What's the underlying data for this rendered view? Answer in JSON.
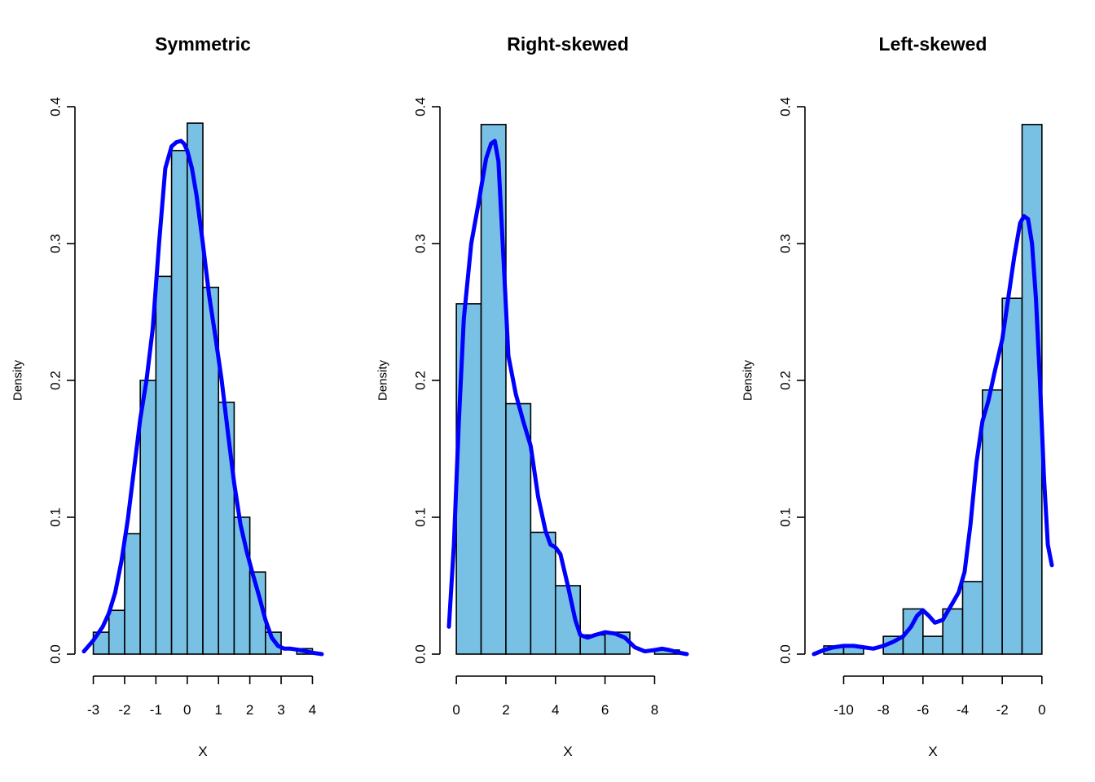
{
  "colors": {
    "bar_fill": "#78C1E5",
    "bar_border": "#000000",
    "density_line": "#0000FF",
    "background": "#FFFFFF"
  },
  "chart_data": [
    {
      "type": "bar",
      "subtype": "histogram-with-density",
      "title": "Symmetric",
      "xlabel": "X",
      "ylabel": "Density",
      "xlim": [
        -3.3,
        4.3
      ],
      "ylim": [
        0,
        0.4
      ],
      "xticks": [
        -3,
        -2,
        -1,
        0,
        1,
        2,
        3,
        4
      ],
      "xtick_labels": [
        "-3",
        "-2",
        "-1",
        "0",
        "1",
        "2",
        "3",
        "4"
      ],
      "yticks": [
        0,
        0.1,
        0.2,
        0.3,
        0.4
      ],
      "ytick_labels": [
        "0.0",
        "0.1",
        "0.2",
        "0.3",
        "0.4"
      ],
      "bin_edges": [
        -3,
        -2.5,
        -2,
        -1.5,
        -1,
        -0.5,
        0,
        0.5,
        1,
        1.5,
        2,
        2.5,
        3,
        3.5,
        4
      ],
      "values": [
        0.016,
        0.032,
        0.088,
        0.2,
        0.276,
        0.368,
        0.388,
        0.268,
        0.184,
        0.1,
        0.06,
        0.016,
        0.0,
        0.004
      ],
      "density": {
        "x": [
          -3.3,
          -3.0,
          -2.7,
          -2.5,
          -2.3,
          -2.1,
          -1.9,
          -1.7,
          -1.5,
          -1.3,
          -1.1,
          -0.9,
          -0.7,
          -0.5,
          -0.35,
          -0.2,
          -0.1,
          0.0,
          0.15,
          0.3,
          0.5,
          0.7,
          0.9,
          1.1,
          1.3,
          1.5,
          1.7,
          1.9,
          2.1,
          2.3,
          2.5,
          2.7,
          2.9,
          3.1,
          3.3,
          3.6,
          4.0,
          4.3
        ],
        "y": [
          0.002,
          0.01,
          0.02,
          0.03,
          0.045,
          0.068,
          0.098,
          0.135,
          0.172,
          0.2,
          0.238,
          0.3,
          0.355,
          0.371,
          0.374,
          0.375,
          0.373,
          0.368,
          0.355,
          0.335,
          0.3,
          0.262,
          0.232,
          0.2,
          0.162,
          0.125,
          0.095,
          0.075,
          0.058,
          0.042,
          0.025,
          0.012,
          0.006,
          0.004,
          0.004,
          0.003,
          0.001,
          0.0
        ]
      }
    },
    {
      "type": "bar",
      "subtype": "histogram-with-density",
      "title": "Right-skewed",
      "xlabel": "X",
      "ylabel": "Density",
      "xlim": [
        -0.3,
        9.3
      ],
      "ylim": [
        0,
        0.4
      ],
      "xticks": [
        0,
        2,
        4,
        6,
        8
      ],
      "xtick_labels": [
        "0",
        "2",
        "4",
        "6",
        "8"
      ],
      "yticks": [
        0,
        0.1,
        0.2,
        0.3,
        0.4
      ],
      "ytick_labels": [
        "0.0",
        "0.1",
        "0.2",
        "0.3",
        "0.4"
      ],
      "bin_edges": [
        0,
        1,
        2,
        3,
        4,
        5,
        6,
        7,
        8,
        9
      ],
      "values": [
        0.256,
        0.387,
        0.183,
        0.089,
        0.05,
        0.014,
        0.016,
        0.0,
        0.003
      ],
      "density": {
        "x": [
          -0.3,
          -0.1,
          0.1,
          0.3,
          0.6,
          0.9,
          1.2,
          1.4,
          1.55,
          1.7,
          1.9,
          2.1,
          2.4,
          2.7,
          3.0,
          3.3,
          3.6,
          3.8,
          4.0,
          4.2,
          4.5,
          4.8,
          5.0,
          5.3,
          5.6,
          6.0,
          6.4,
          6.8,
          7.2,
          7.6,
          8.0,
          8.3,
          8.6,
          9.0,
          9.3
        ],
        "y": [
          0.02,
          0.08,
          0.17,
          0.245,
          0.3,
          0.33,
          0.362,
          0.373,
          0.375,
          0.36,
          0.29,
          0.218,
          0.19,
          0.17,
          0.152,
          0.115,
          0.09,
          0.08,
          0.078,
          0.073,
          0.05,
          0.025,
          0.014,
          0.012,
          0.014,
          0.016,
          0.015,
          0.012,
          0.005,
          0.002,
          0.003,
          0.004,
          0.003,
          0.001,
          0.0
        ]
      }
    },
    {
      "type": "bar",
      "subtype": "histogram-with-density",
      "title": "Left-skewed",
      "xlabel": "X",
      "ylabel": "Density",
      "xlim": [
        -11.5,
        0.5
      ],
      "ylim": [
        0,
        0.4
      ],
      "xticks": [
        -10,
        -8,
        -6,
        -4,
        -2,
        0
      ],
      "xtick_labels": [
        "-10",
        "-8",
        "-6",
        "-4",
        "-2",
        "0"
      ],
      "yticks": [
        0,
        0.1,
        0.2,
        0.3,
        0.4
      ],
      "ytick_labels": [
        "0.0",
        "0.1",
        "0.2",
        "0.3",
        "0.4"
      ],
      "bin_edges": [
        -11,
        -10,
        -9,
        -8,
        -7,
        -6,
        -5,
        -4,
        -3,
        -2,
        -1,
        0
      ],
      "values": [
        0.006,
        0.006,
        0.0,
        0.013,
        0.033,
        0.013,
        0.033,
        0.053,
        0.193,
        0.26,
        0.387
      ],
      "density": {
        "x": [
          -11.5,
          -11.0,
          -10.5,
          -10.0,
          -9.5,
          -9.0,
          -8.5,
          -8.0,
          -7.5,
          -7.0,
          -6.6,
          -6.3,
          -6.0,
          -5.7,
          -5.4,
          -5.0,
          -4.6,
          -4.2,
          -3.9,
          -3.6,
          -3.3,
          -3.0,
          -2.7,
          -2.4,
          -2.0,
          -1.7,
          -1.4,
          -1.1,
          -0.9,
          -0.7,
          -0.5,
          -0.3,
          -0.1,
          0.1,
          0.3,
          0.5
        ],
        "y": [
          0.0,
          0.003,
          0.005,
          0.006,
          0.006,
          0.005,
          0.004,
          0.006,
          0.009,
          0.013,
          0.02,
          0.028,
          0.032,
          0.028,
          0.023,
          0.025,
          0.035,
          0.045,
          0.06,
          0.095,
          0.14,
          0.17,
          0.185,
          0.205,
          0.23,
          0.26,
          0.29,
          0.315,
          0.32,
          0.318,
          0.3,
          0.26,
          0.2,
          0.13,
          0.08,
          0.065
        ]
      }
    }
  ]
}
